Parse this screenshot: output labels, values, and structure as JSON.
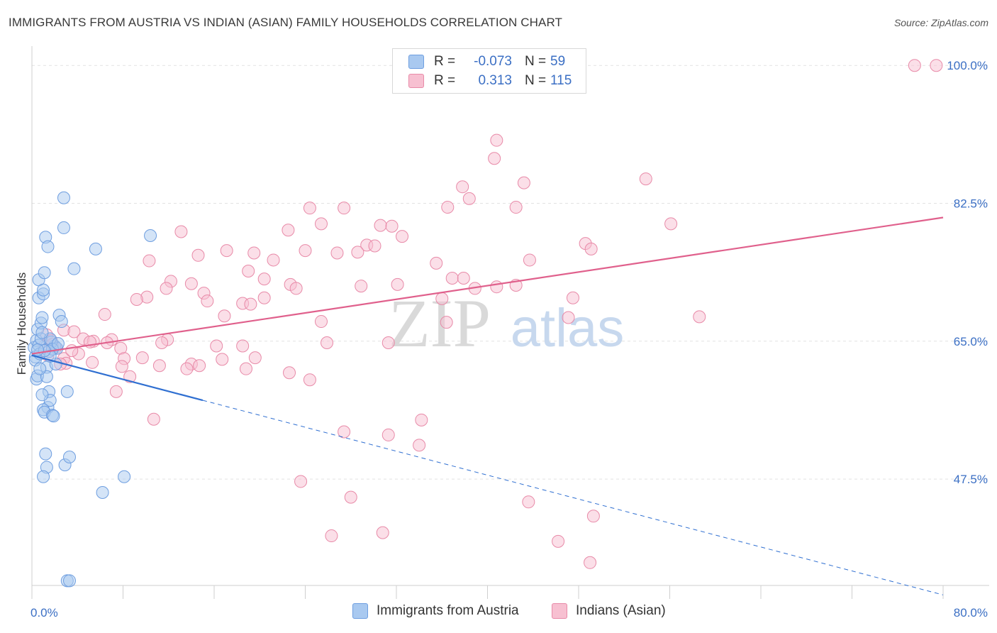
{
  "header": {
    "title": "IMMIGRANTS FROM AUSTRIA VS INDIAN (ASIAN) FAMILY HOUSEHOLDS CORRELATION CHART",
    "source": "Source: ZipAtlas.com"
  },
  "legend": {
    "r_label": "R =",
    "n_label": "N =",
    "series": [
      {
        "r": "-0.073",
        "n": "59"
      },
      {
        "r": "0.313",
        "n": "115"
      }
    ]
  },
  "watermark": {
    "zip": "ZIP",
    "atlas": "atlas"
  },
  "colors": {
    "blue_fill": "#a9c9f0",
    "blue_stroke": "#6e9ee0",
    "blue_line": "#2f6fd1",
    "pink_fill": "#f7c0d1",
    "pink_stroke": "#e88aa8",
    "pink_line": "#e0608c",
    "tick_label": "#3b6fc4",
    "grid": "#e2e2e2"
  },
  "chart_data": {
    "type": "scatter",
    "title": "IMMIGRANTS FROM AUSTRIA VS INDIAN (ASIAN) FAMILY HOUSEHOLDS CORRELATION CHART",
    "xlabel": "",
    "ylabel": "Family Households",
    "xlim": [
      0,
      80
    ],
    "ylim": [
      34,
      102
    ],
    "x_tick_labels": [
      "0.0%",
      "80.0%"
    ],
    "y_ticks": [
      47.5,
      65.0,
      82.5,
      100.0
    ],
    "y_tick_labels": [
      "47.5%",
      "65.0%",
      "82.5%",
      "100.0%"
    ],
    "legend_position": "top-center",
    "series": [
      {
        "name": "Immigrants from Austria",
        "color": "blue",
        "r": -0.073,
        "n": 59,
        "trend": {
          "x0": 0,
          "y0": 63.2,
          "x1": 15,
          "y1": 57.5,
          "dashed_to_x": 80,
          "dashed_to_y": 32.8
        },
        "points": [
          [
            0.2,
            64.2
          ],
          [
            0.3,
            63.0
          ],
          [
            0.4,
            65.1
          ],
          [
            0.5,
            66.5
          ],
          [
            0.3,
            62.6
          ],
          [
            0.6,
            64.5
          ],
          [
            0.7,
            63.4
          ],
          [
            0.8,
            65.3
          ],
          [
            0.4,
            60.2
          ],
          [
            0.5,
            60.6
          ],
          [
            0.6,
            70.5
          ],
          [
            0.6,
            72.8
          ],
          [
            0.8,
            67.3
          ],
          [
            0.9,
            68.0
          ],
          [
            1.0,
            71.0
          ],
          [
            1.0,
            71.5
          ],
          [
            1.1,
            73.7
          ],
          [
            1.2,
            78.2
          ],
          [
            1.4,
            77.0
          ],
          [
            1.3,
            61.7
          ],
          [
            1.3,
            60.5
          ],
          [
            1.5,
            58.6
          ],
          [
            1.4,
            56.6
          ],
          [
            1.6,
            57.5
          ],
          [
            0.9,
            58.2
          ],
          [
            1.0,
            56.3
          ],
          [
            1.1,
            56.0
          ],
          [
            1.8,
            55.6
          ],
          [
            1.9,
            55.5
          ],
          [
            1.2,
            50.7
          ],
          [
            1.3,
            49.0
          ],
          [
            1.0,
            47.8
          ],
          [
            2.0,
            64.4
          ],
          [
            2.2,
            64.1
          ],
          [
            1.7,
            64.9
          ],
          [
            1.6,
            65.3
          ],
          [
            2.4,
            68.3
          ],
          [
            2.6,
            67.5
          ],
          [
            2.8,
            83.2
          ],
          [
            2.8,
            79.4
          ],
          [
            3.1,
            58.6
          ],
          [
            2.9,
            49.3
          ],
          [
            3.3,
            50.3
          ],
          [
            3.7,
            74.2
          ],
          [
            5.6,
            76.7
          ],
          [
            6.2,
            45.8
          ],
          [
            8.1,
            47.8
          ],
          [
            10.4,
            78.4
          ],
          [
            3.1,
            34.6
          ],
          [
            3.3,
            34.6
          ],
          [
            2.1,
            62.1
          ],
          [
            1.5,
            63.7
          ],
          [
            1.8,
            64.0
          ],
          [
            2.3,
            64.7
          ],
          [
            0.7,
            61.5
          ],
          [
            0.9,
            66.1
          ],
          [
            1.6,
            63.1
          ],
          [
            1.1,
            63.8
          ],
          [
            0.5,
            63.9
          ]
        ]
      },
      {
        "name": "Indians (Asian)",
        "color": "pink",
        "r": 0.313,
        "n": 115,
        "trend": {
          "x0": 0,
          "y0": 63.4,
          "x1": 80,
          "y1": 80.7
        },
        "points": [
          [
            77.5,
            100.0
          ],
          [
            79.4,
            100.0
          ],
          [
            40.8,
            90.5
          ],
          [
            40.6,
            88.2
          ],
          [
            43.2,
            85.1
          ],
          [
            53.9,
            85.6
          ],
          [
            37.8,
            84.6
          ],
          [
            38.4,
            83.1
          ],
          [
            36.5,
            82.0
          ],
          [
            42.5,
            82.0
          ],
          [
            24.4,
            81.9
          ],
          [
            27.4,
            81.9
          ],
          [
            56.1,
            79.9
          ],
          [
            25.4,
            79.9
          ],
          [
            30.6,
            79.7
          ],
          [
            31.6,
            79.6
          ],
          [
            22.5,
            79.1
          ],
          [
            13.1,
            78.9
          ],
          [
            32.5,
            78.3
          ],
          [
            48.6,
            77.4
          ],
          [
            29.4,
            77.2
          ],
          [
            30.1,
            77.1
          ],
          [
            49.1,
            76.7
          ],
          [
            17.1,
            76.5
          ],
          [
            19.5,
            76.2
          ],
          [
            24.0,
            76.5
          ],
          [
            26.8,
            76.2
          ],
          [
            28.6,
            76.3
          ],
          [
            14.6,
            75.9
          ],
          [
            21.2,
            75.3
          ],
          [
            10.3,
            75.2
          ],
          [
            35.5,
            74.9
          ],
          [
            43.7,
            75.3
          ],
          [
            19.0,
            73.9
          ],
          [
            36.9,
            73.0
          ],
          [
            37.9,
            73.0
          ],
          [
            20.4,
            72.9
          ],
          [
            12.2,
            72.6
          ],
          [
            14.0,
            72.3
          ],
          [
            22.7,
            72.2
          ],
          [
            28.9,
            72.0
          ],
          [
            32.1,
            72.2
          ],
          [
            38.9,
            71.7
          ],
          [
            40.8,
            71.9
          ],
          [
            42.5,
            72.1
          ],
          [
            11.8,
            71.7
          ],
          [
            23.2,
            71.7
          ],
          [
            15.1,
            71.1
          ],
          [
            10.1,
            70.6
          ],
          [
            20.4,
            70.5
          ],
          [
            36.0,
            70.4
          ],
          [
            47.5,
            70.5
          ],
          [
            9.2,
            70.3
          ],
          [
            15.4,
            70.1
          ],
          [
            18.5,
            69.8
          ],
          [
            19.2,
            69.7
          ],
          [
            6.4,
            68.4
          ],
          [
            16.9,
            68.2
          ],
          [
            58.6,
            68.1
          ],
          [
            47.1,
            68.0
          ],
          [
            25.4,
            67.5
          ],
          [
            36.4,
            67.4
          ],
          [
            2.8,
            66.4
          ],
          [
            3.7,
            66.2
          ],
          [
            1.3,
            65.8
          ],
          [
            1.7,
            65.1
          ],
          [
            4.5,
            65.3
          ],
          [
            7.0,
            65.2
          ],
          [
            5.4,
            65.0
          ],
          [
            11.9,
            65.2
          ],
          [
            5.1,
            64.9
          ],
          [
            6.6,
            64.8
          ],
          [
            1.1,
            64.4
          ],
          [
            2.1,
            64.2
          ],
          [
            11.4,
            64.8
          ],
          [
            16.2,
            64.4
          ],
          [
            18.5,
            64.4
          ],
          [
            25.9,
            64.8
          ],
          [
            31.3,
            64.8
          ],
          [
            7.8,
            64.1
          ],
          [
            4.1,
            63.4
          ],
          [
            1.4,
            63.2
          ],
          [
            2.8,
            62.8
          ],
          [
            8.1,
            62.8
          ],
          [
            9.7,
            62.9
          ],
          [
            16.7,
            62.7
          ],
          [
            19.6,
            62.9
          ],
          [
            3.0,
            62.2
          ],
          [
            5.3,
            62.3
          ],
          [
            2.5,
            62.1
          ],
          [
            7.9,
            61.8
          ],
          [
            11.2,
            61.9
          ],
          [
            14.0,
            62.1
          ],
          [
            14.7,
            61.9
          ],
          [
            13.6,
            61.5
          ],
          [
            18.8,
            61.5
          ],
          [
            8.6,
            60.5
          ],
          [
            22.6,
            61.0
          ],
          [
            24.4,
            60.1
          ],
          [
            7.4,
            58.6
          ],
          [
            10.7,
            55.1
          ],
          [
            34.2,
            55.0
          ],
          [
            27.4,
            53.5
          ],
          [
            31.3,
            53.1
          ],
          [
            34.0,
            51.8
          ],
          [
            23.6,
            47.2
          ],
          [
            28.0,
            45.2
          ],
          [
            43.6,
            44.6
          ],
          [
            49.3,
            42.8
          ],
          [
            26.3,
            40.3
          ],
          [
            30.8,
            40.7
          ],
          [
            46.2,
            39.6
          ],
          [
            49.0,
            36.9
          ],
          [
            1.8,
            64.6
          ],
          [
            3.5,
            63.8
          ]
        ]
      }
    ]
  }
}
